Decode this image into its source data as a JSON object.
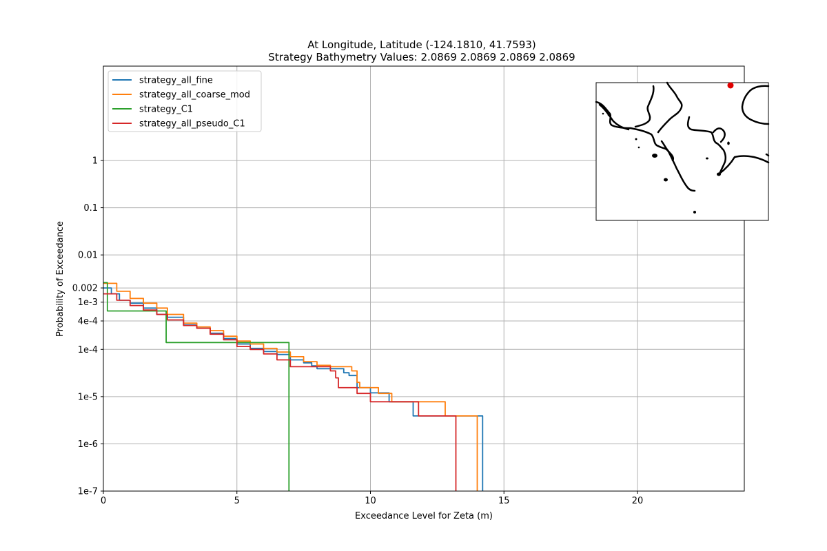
{
  "chart_data": {
    "type": "line",
    "title": "At Longitude, Latitude (-124.1810,  41.7593)",
    "subtitle": "Strategy Bathymetry Values:    2.0869    2.0869    2.0869    2.0869",
    "xlabel": "Exceedance Level for Zeta (m)",
    "ylabel": "Probability of Exceedance",
    "xlim": [
      0,
      24
    ],
    "ylim": [
      1e-07,
      1
    ],
    "yscale": "log",
    "grid": true,
    "legend_position": "top-left",
    "x_ticks": [
      {
        "value": 0,
        "label": "0"
      },
      {
        "value": 5,
        "label": "5"
      },
      {
        "value": 10,
        "label": "10"
      },
      {
        "value": 15,
        "label": "15"
      },
      {
        "value": 20,
        "label": "20"
      }
    ],
    "y_ticks": [
      {
        "value": 1,
        "label": "1"
      },
      {
        "value": 0.1,
        "label": "0.1"
      },
      {
        "value": 0.01,
        "label": "0.01"
      },
      {
        "value": 0.002,
        "label": "0.002"
      },
      {
        "value": 0.001,
        "label": "1e-3"
      },
      {
        "value": 0.0004,
        "label": "4e-4"
      },
      {
        "value": 0.0001,
        "label": "1e-4"
      },
      {
        "value": 1e-05,
        "label": "1e-5"
      },
      {
        "value": 1e-06,
        "label": "1e-6"
      },
      {
        "value": 1e-07,
        "label": "1e-7"
      }
    ],
    "series": [
      {
        "name": "strategy_all_fine",
        "color": "#1f77b4",
        "points": [
          [
            0,
            0.002
          ],
          [
            0.3,
            0.0015
          ],
          [
            0.6,
            0.0011
          ],
          [
            1,
            0.00095
          ],
          [
            1.5,
            0.00075
          ],
          [
            2,
            0.00055
          ],
          [
            2.4,
            0.00048
          ],
          [
            3,
            0.00033
          ],
          [
            3.5,
            0.00028
          ],
          [
            4,
            0.00022
          ],
          [
            4.5,
            0.00017
          ],
          [
            5,
            0.00013
          ],
          [
            5.5,
            0.000105
          ],
          [
            6,
            9e-05
          ],
          [
            6.5,
            7.8e-05
          ],
          [
            7,
            6e-05
          ],
          [
            7.5,
            5.2e-05
          ],
          [
            7.8,
            4.5e-05
          ],
          [
            8,
            3.9e-05
          ],
          [
            8.5,
            3.9e-05
          ],
          [
            9,
            3.2e-05
          ],
          [
            9.2,
            2.8e-05
          ],
          [
            9.5,
            2e-05
          ],
          [
            9.5,
            1.55e-05
          ],
          [
            10,
            1.2e-05
          ],
          [
            10.5,
            1.2e-05
          ],
          [
            10.7,
            7.8e-06
          ],
          [
            11.2,
            7.8e-06
          ],
          [
            11.6,
            3.9e-06
          ],
          [
            14.2,
            3.9e-06
          ],
          [
            14.2,
            1e-07
          ]
        ]
      },
      {
        "name": "strategy_all_coarse_mod",
        "color": "#ff7f0e",
        "points": [
          [
            0,
            0.0025
          ],
          [
            0.5,
            0.0017
          ],
          [
            1,
            0.0012
          ],
          [
            1.5,
            0.00095
          ],
          [
            2,
            0.00075
          ],
          [
            2.4,
            0.00055
          ],
          [
            3,
            0.00036
          ],
          [
            3.5,
            0.0003
          ],
          [
            4,
            0.00025
          ],
          [
            4.5,
            0.00019
          ],
          [
            5,
            0.00015
          ],
          [
            5.5,
            0.00013
          ],
          [
            6,
            0.000105
          ],
          [
            6.5,
            8.8e-05
          ],
          [
            7,
            7e-05
          ],
          [
            7.5,
            5.5e-05
          ],
          [
            8,
            4.6e-05
          ],
          [
            8.5,
            4.3e-05
          ],
          [
            9,
            4.3e-05
          ],
          [
            9.3,
            3.5e-05
          ],
          [
            9.5,
            2e-05
          ],
          [
            9.6,
            1.55e-05
          ],
          [
            10.3,
            1.55e-05
          ],
          [
            10.3,
            1.17e-05
          ],
          [
            10.8,
            1.17e-05
          ],
          [
            10.8,
            7.8e-06
          ],
          [
            12.7,
            7.8e-06
          ],
          [
            12.8,
            3.9e-06
          ],
          [
            14,
            3.9e-06
          ],
          [
            14,
            1e-07
          ]
        ]
      },
      {
        "name": "strategy_C1",
        "color": "#2ca02c",
        "points": [
          [
            0,
            0.0026
          ],
          [
            0.15,
            0.0026
          ],
          [
            0.15,
            0.00065
          ],
          [
            2.35,
            0.00065
          ],
          [
            2.35,
            0.00014
          ],
          [
            6.95,
            0.00014
          ],
          [
            6.95,
            1e-07
          ]
        ]
      },
      {
        "name": "strategy_all_pseudo_C1",
        "color": "#d62728",
        "points": [
          [
            0,
            0.0015
          ],
          [
            0.5,
            0.0011
          ],
          [
            1,
            0.00085
          ],
          [
            1.5,
            0.00068
          ],
          [
            2,
            0.00055
          ],
          [
            2.4,
            0.00042
          ],
          [
            3,
            0.00032
          ],
          [
            3.5,
            0.00028
          ],
          [
            4,
            0.00021
          ],
          [
            4.5,
            0.00016
          ],
          [
            5,
            0.000115
          ],
          [
            5.5,
            0.0001
          ],
          [
            6,
            8e-05
          ],
          [
            6.5,
            6e-05
          ],
          [
            7,
            4.3e-05
          ],
          [
            8,
            4.3e-05
          ],
          [
            8.5,
            3.5e-05
          ],
          [
            8.7,
            2.5e-05
          ],
          [
            8.8,
            1.55e-05
          ],
          [
            9.5,
            1.55e-05
          ],
          [
            9.5,
            1.17e-05
          ],
          [
            10,
            1.17e-05
          ],
          [
            10,
            7.8e-06
          ],
          [
            11.8,
            7.8e-06
          ],
          [
            11.8,
            3.9e-06
          ],
          [
            13.2,
            3.9e-06
          ],
          [
            13.2,
            1e-07
          ]
        ]
      }
    ]
  },
  "inset_map": {
    "marker_color": "#e00000",
    "coast_color": "#000000"
  }
}
